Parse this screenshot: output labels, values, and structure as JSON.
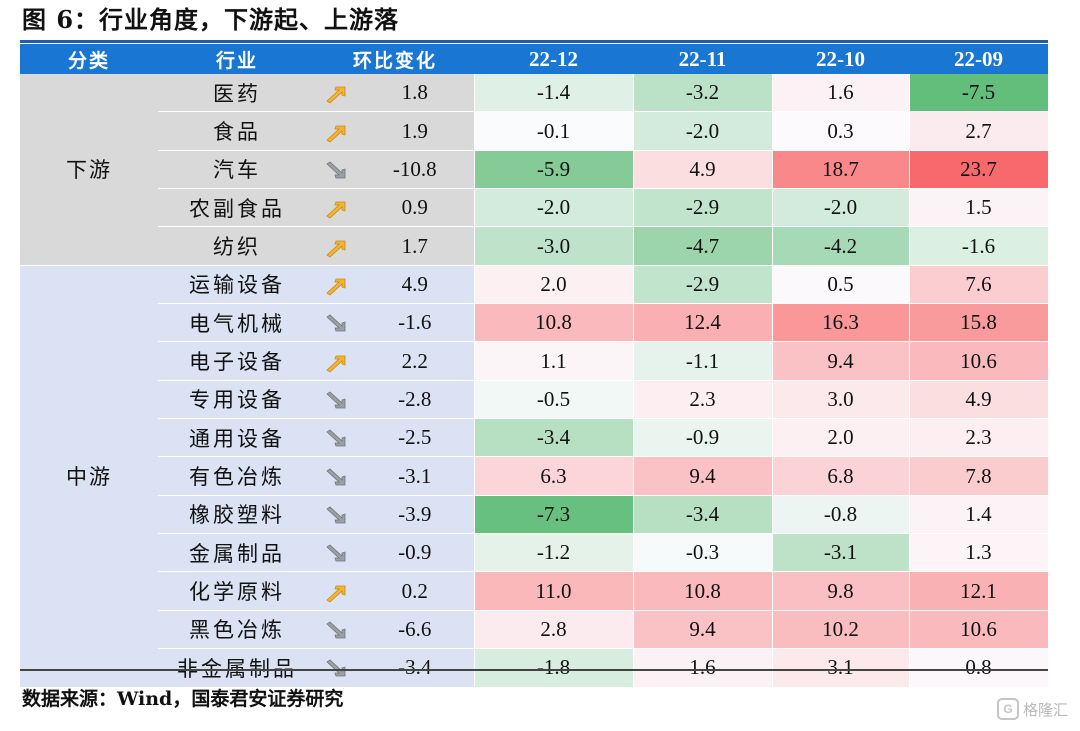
{
  "title": "图 6：行业角度，下游起、上游落",
  "table": {
    "headers": [
      "分类",
      "行业",
      "环比变化",
      "22-12",
      "22-11",
      "22-10",
      "22-09"
    ],
    "groups": [
      {
        "name": "下游",
        "rows": [
          {
            "industry": "医药",
            "trend": "up",
            "change": "1.8",
            "values": [
              "-1.4",
              "-3.2",
              "1.6",
              "-7.5"
            ]
          },
          {
            "industry": "食品",
            "trend": "up",
            "change": "1.9",
            "values": [
              "-0.1",
              "-2.0",
              "0.3",
              "2.7"
            ]
          },
          {
            "industry": "汽车",
            "trend": "down",
            "change": "-10.8",
            "values": [
              "-5.9",
              "4.9",
              "18.7",
              "23.7"
            ]
          },
          {
            "industry": "农副食品",
            "trend": "up",
            "change": "0.9",
            "values": [
              "-2.0",
              "-2.9",
              "-2.0",
              "1.5"
            ]
          },
          {
            "industry": "纺织",
            "trend": "up",
            "change": "1.7",
            "values": [
              "-3.0",
              "-4.7",
              "-4.2",
              "-1.6"
            ]
          }
        ]
      },
      {
        "name": "中游",
        "rows": [
          {
            "industry": "运输设备",
            "trend": "up",
            "change": "4.9",
            "values": [
              "2.0",
              "-2.9",
              "0.5",
              "7.6"
            ]
          },
          {
            "industry": "电气机械",
            "trend": "down",
            "change": "-1.6",
            "values": [
              "10.8",
              "12.4",
              "16.3",
              "15.8"
            ]
          },
          {
            "industry": "电子设备",
            "trend": "up",
            "change": "2.2",
            "values": [
              "1.1",
              "-1.1",
              "9.4",
              "10.6"
            ]
          },
          {
            "industry": "专用设备",
            "trend": "down",
            "change": "-2.8",
            "values": [
              "-0.5",
              "2.3",
              "3.0",
              "4.9"
            ]
          },
          {
            "industry": "通用设备",
            "trend": "down",
            "change": "-2.5",
            "values": [
              "-3.4",
              "-0.9",
              "2.0",
              "2.3"
            ]
          },
          {
            "industry": "有色冶炼",
            "trend": "down",
            "change": "-3.1",
            "values": [
              "6.3",
              "9.4",
              "6.8",
              "7.8"
            ]
          },
          {
            "industry": "橡胶塑料",
            "trend": "down",
            "change": "-3.9",
            "values": [
              "-7.3",
              "-3.4",
              "-0.8",
              "1.4"
            ]
          },
          {
            "industry": "金属制品",
            "trend": "down",
            "change": "-0.9",
            "values": [
              "-1.2",
              "-0.3",
              "-3.1",
              "1.3"
            ]
          },
          {
            "industry": "化学原料",
            "trend": "up",
            "change": "0.2",
            "values": [
              "11.0",
              "10.8",
              "9.8",
              "12.1"
            ]
          },
          {
            "industry": "黑色冶炼",
            "trend": "down",
            "change": "-6.6",
            "values": [
              "2.8",
              "9.4",
              "10.2",
              "10.6"
            ]
          },
          {
            "industry": "非金属制品",
            "trend": "down",
            "change": "-3.4",
            "values": [
              "-1.8",
              "1.6",
              "3.1",
              "0.8"
            ]
          }
        ]
      }
    ]
  },
  "colors": {
    "header_bg": "#1976d2",
    "downstream_bg": "#d9d9d9",
    "midstream_bg": "#dbe2f4",
    "arrow_up": "#f2b33a",
    "arrow_down": "#9aa0a6",
    "neg_max": "#63be7b",
    "pos_max": "#f8696b",
    "neutral": "#fcfcff"
  },
  "source": "数据来源：Wind，国泰君安证券研究",
  "watermark": "格隆汇"
}
